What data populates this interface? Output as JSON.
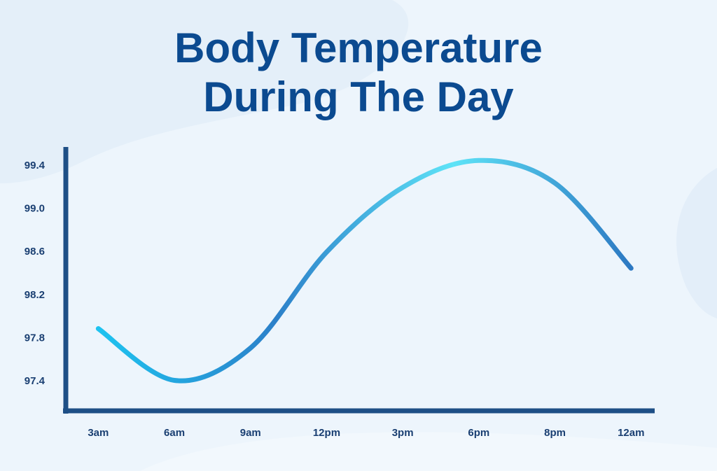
{
  "chart_data": {
    "type": "line",
    "title": "Body Temperature During The Day",
    "categories": [
      "3am",
      "6am",
      "9am",
      "12pm",
      "3pm",
      "6pm",
      "8pm",
      "12am"
    ],
    "values": [
      97.89,
      97.41,
      97.71,
      98.6,
      99.2,
      99.45,
      99.24,
      98.45
    ],
    "colors": [
      "#1ec3f0",
      "#2c80c9",
      "#5ee3f7",
      "#2c78c2"
    ],
    "ylim": [
      97.13,
      99.57
    ],
    "yticks": [
      {
        "value": 97.4,
        "label": "97.4"
      },
      {
        "value": 97.8,
        "label": "97.8"
      },
      {
        "value": 98.2,
        "label": "98.2"
      },
      {
        "value": 98.6,
        "label": "98.6"
      },
      {
        "value": 99.0,
        "label": "99.0"
      },
      {
        "value": 99.4,
        "label": "99.4"
      }
    ],
    "grid": false
  }
}
